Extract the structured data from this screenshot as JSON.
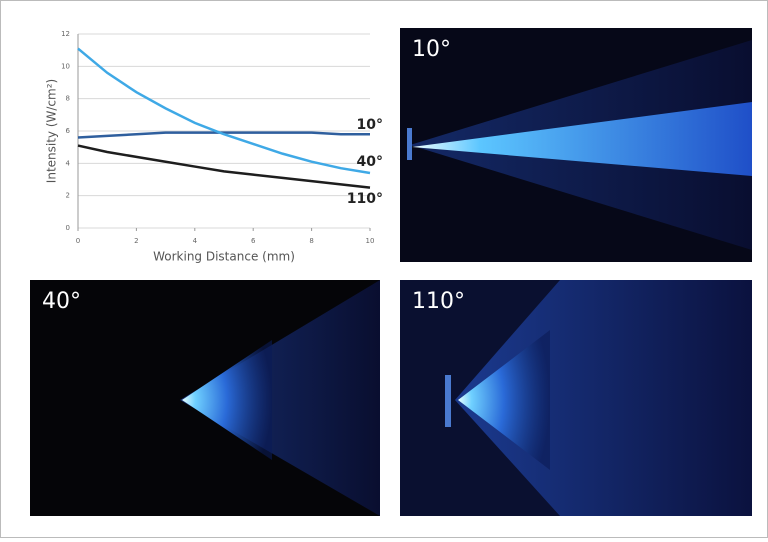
{
  "chart_data": {
    "type": "line",
    "xlabel": "Working Distance (mm)",
    "ylabel": "Intensity (W/cm²)",
    "x": [
      0,
      1,
      2,
      3,
      4,
      5,
      6,
      7,
      8,
      9,
      10
    ],
    "series": [
      {
        "name": "10°",
        "color": "#2f5f9e",
        "values": [
          5.6,
          5.7,
          5.8,
          5.9,
          5.9,
          5.9,
          5.9,
          5.9,
          5.9,
          5.8,
          5.8
        ]
      },
      {
        "name": "40°",
        "color": "#3fa9e6",
        "values": [
          11.1,
          9.6,
          8.4,
          7.4,
          6.5,
          5.8,
          5.2,
          4.6,
          4.1,
          3.7,
          3.4
        ]
      },
      {
        "name": "110°",
        "color": "#1e1e1e",
        "values": [
          5.1,
          4.7,
          4.4,
          4.1,
          3.8,
          3.5,
          3.3,
          3.1,
          2.9,
          2.7,
          2.5
        ]
      }
    ],
    "xlim": [
      0,
      10
    ],
    "xticks": [
      0,
      2,
      4,
      6,
      8,
      10
    ],
    "ylim": [
      0,
      12
    ],
    "yticks": [
      0,
      2,
      4,
      6,
      8,
      10,
      12
    ],
    "grid": true
  },
  "images": [
    {
      "label": "10°"
    },
    {
      "label": "40°"
    },
    {
      "label": "110°"
    }
  ]
}
